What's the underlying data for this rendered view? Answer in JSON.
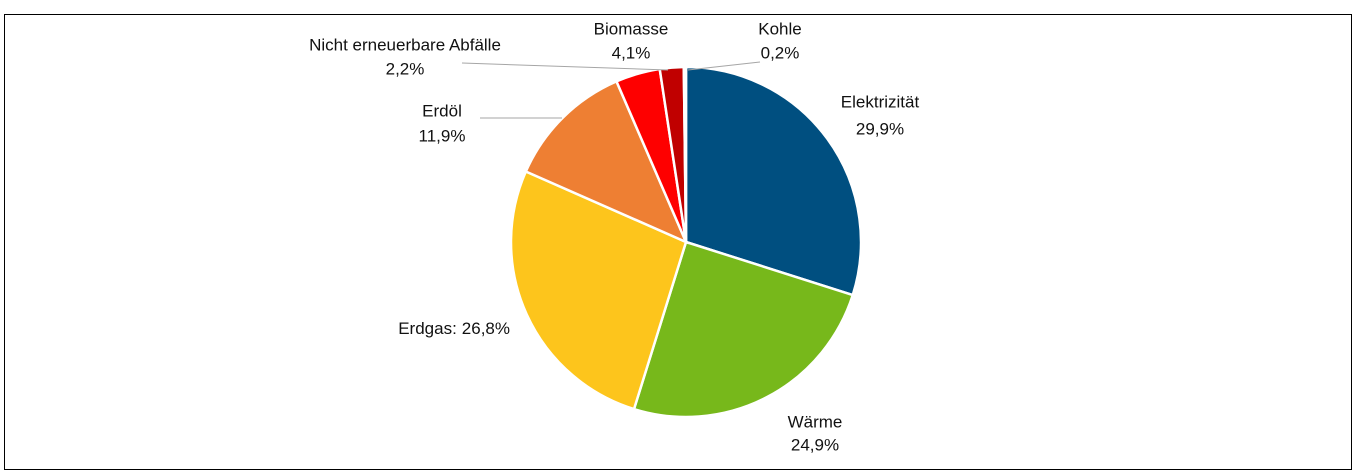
{
  "chart_data": {
    "type": "pie",
    "categories": [
      "Elektrizität",
      "Wärme",
      "Erdgas:",
      "Erdöl",
      "Biomasse",
      "Nicht erneuerbare Abfälle",
      "Kohle"
    ],
    "values": [
      29.9,
      24.9,
      26.8,
      11.9,
      4.1,
      2.2,
      0.2
    ],
    "value_labels": [
      "29,9%",
      "24,9%",
      "26,8%",
      "11,9%",
      "4,1%",
      "2,2%",
      "0,2%"
    ],
    "colors": [
      "#004f80",
      "#77b81b",
      "#fdc51c",
      "#ee7f33",
      "#fe0000",
      "#c00000",
      "#7f0000"
    ]
  }
}
